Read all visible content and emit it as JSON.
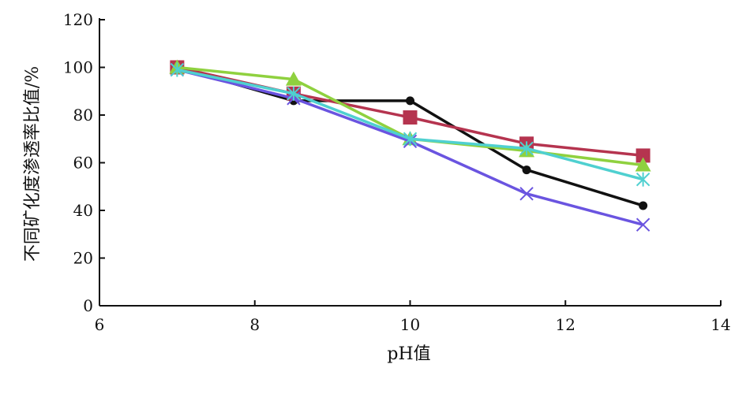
{
  "chart_data": {
    "type": "line",
    "xlabel": "pH值",
    "ylabel": "不同矿化度渗透率比值/%",
    "xlim": [
      6,
      14
    ],
    "ylim": [
      0,
      120
    ],
    "xticks": [
      "6",
      "8",
      "10",
      "12",
      "14"
    ],
    "yticks": [
      "0",
      "20",
      "40",
      "60",
      "80",
      "100",
      "120"
    ],
    "grid": false,
    "legend": "none",
    "series": [
      {
        "color": "#111111",
        "marker": "circle",
        "x": [
          7,
          8.5,
          10,
          11.5,
          13
        ],
        "y": [
          100,
          86,
          86,
          57,
          42
        ]
      },
      {
        "color": "#b5344f",
        "marker": "square",
        "x": [
          7,
          8.5,
          10,
          11.5,
          13
        ],
        "y": [
          100,
          89,
          79,
          68,
          63
        ]
      },
      {
        "color": "#8fd13f",
        "marker": "triangle",
        "x": [
          7,
          8.5,
          10,
          11.5,
          13
        ],
        "y": [
          100,
          95,
          70,
          65,
          59
        ]
      },
      {
        "color": "#6a54e0",
        "marker": "x",
        "x": [
          7,
          8.5,
          10,
          11.5,
          13
        ],
        "y": [
          99,
          87,
          69,
          47,
          34
        ]
      },
      {
        "color": "#4fd0d0",
        "marker": "star",
        "x": [
          7,
          8.5,
          10,
          11.5,
          13
        ],
        "y": [
          99,
          89,
          70,
          66,
          53
        ]
      }
    ]
  }
}
